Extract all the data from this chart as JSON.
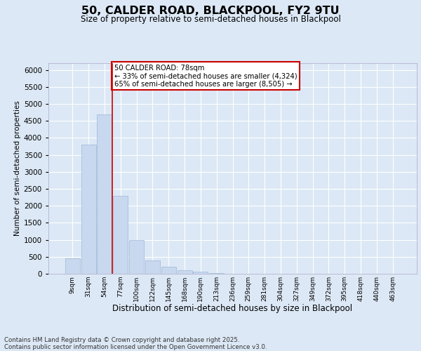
{
  "title": "50, CALDER ROAD, BLACKPOOL, FY2 9TU",
  "subtitle": "Size of property relative to semi-detached houses in Blackpool",
  "xlabel": "Distribution of semi-detached houses by size in Blackpool",
  "ylabel": "Number of semi-detached properties",
  "categories": [
    "9sqm",
    "31sqm",
    "54sqm",
    "77sqm",
    "100sqm",
    "122sqm",
    "145sqm",
    "168sqm",
    "190sqm",
    "213sqm",
    "236sqm",
    "259sqm",
    "281sqm",
    "304sqm",
    "327sqm",
    "349sqm",
    "372sqm",
    "395sqm",
    "418sqm",
    "440sqm",
    "463sqm"
  ],
  "values": [
    450,
    3800,
    4700,
    2300,
    1000,
    400,
    200,
    100,
    60,
    30,
    0,
    0,
    0,
    0,
    0,
    0,
    0,
    0,
    0,
    0,
    0
  ],
  "bar_color": "#c8d8ee",
  "bar_edge_color": "#a0b8d8",
  "vline_index": 3,
  "vline_color": "#cc0000",
  "annotation_line1": "50 CALDER ROAD: 78sqm",
  "annotation_line2": "← 33% of semi-detached houses are smaller (4,324)",
  "annotation_line3": "65% of semi-detached houses are larger (8,505) →",
  "ylim_max": 6200,
  "yticks": [
    0,
    500,
    1000,
    1500,
    2000,
    2500,
    3000,
    3500,
    4000,
    4500,
    5000,
    5500,
    6000
  ],
  "background_color": "#dce8f5",
  "grid_color": "#ffffff",
  "footer_line1": "Contains HM Land Registry data © Crown copyright and database right 2025.",
  "footer_line2": "Contains public sector information licensed under the Open Government Licence v3.0."
}
